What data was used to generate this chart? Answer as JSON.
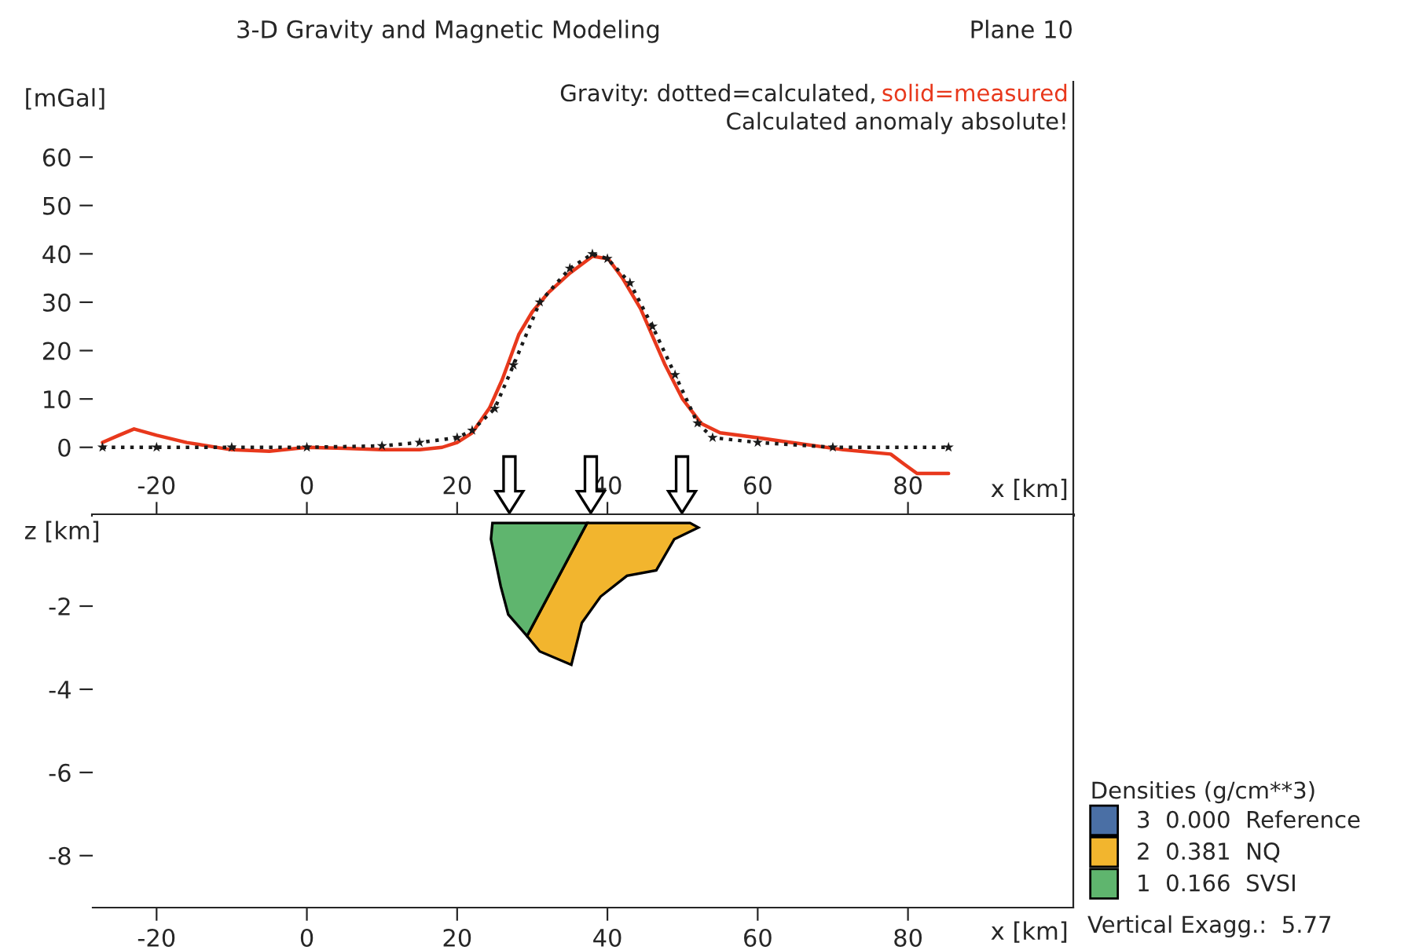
{
  "chart_data": [
    {
      "type": "line",
      "title": "3-D Gravity and Magnetic Modeling",
      "subtitle": "Plane 10",
      "xlabel": "x [km]",
      "ylabel": "[mGal]",
      "annotations": [
        "Gravity: dotted=calculated,",
        "solid=measured",
        "Calculated anomaly absolute!"
      ],
      "series": [
        {
          "color": "#e8381c",
          "line_style": "solid",
          "marker": "none",
          "x": [
            -27.2,
            -25,
            -23,
            -20,
            -16,
            -10,
            -5,
            0,
            5,
            10,
            15,
            18,
            20,
            22,
            24.3,
            26,
            28.2,
            30,
            32.1,
            35,
            38,
            40.1,
            42,
            44.4,
            46,
            47.6,
            50,
            52.5,
            55,
            60,
            64,
            71.4,
            77.7,
            79.5,
            81.2,
            85.4
          ],
          "values": [
            1,
            2.5,
            3.8,
            2.5,
            1,
            -0.5,
            -0.8,
            0,
            -0.2,
            -0.5,
            -0.5,
            0,
            1,
            3,
            8.1,
            14,
            23.3,
            28,
            31.9,
            36,
            39.5,
            39,
            35,
            28.7,
            23,
            17.3,
            10,
            4.9,
            3,
            2,
            1.1,
            -0.5,
            -1.4,
            -3.5,
            -5.4,
            -5.4
          ]
        },
        {
          "color": "#1a1a1a",
          "line_style": "dotted",
          "marker": "star",
          "x": [
            -27.2,
            -20,
            -10,
            0,
            10,
            15,
            20,
            22,
            25,
            27.5,
            31,
            35,
            38,
            40,
            43,
            46,
            49,
            52,
            54,
            60,
            70,
            85.4
          ],
          "values": [
            0,
            0,
            0,
            0,
            0.3,
            1,
            2,
            3.5,
            8,
            17,
            30,
            37,
            40,
            39,
            34,
            25,
            15,
            5,
            2,
            1,
            0,
            0
          ]
        }
      ],
      "xlim": [
        -28.5,
        102
      ],
      "ylim": [
        -14,
        75.6
      ],
      "xticks": [
        -20,
        0,
        20,
        40,
        60,
        80
      ],
      "yticks": [
        0,
        10,
        20,
        30,
        40,
        50,
        60
      ]
    },
    {
      "type": "area",
      "xlabel": "x [km]",
      "ylabel": "z [km]",
      "legend_title": "Densities (g/cm**3)",
      "legend": "bottom right",
      "annotations": [
        "Vertical Exagg.:  5.77"
      ],
      "series": [
        {
          "name": "3  0.000  Reference",
          "color": "#4a6fa5"
        },
        {
          "name": "2  0.381  NQ",
          "color": "#f2b52e",
          "x": [
            37.3,
            51.0,
            52.1,
            48.9,
            46.5,
            42.6,
            39.1,
            36.6,
            35.2,
            31.0,
            29.3
          ],
          "values": [
            0,
            0,
            -0.11,
            -0.39,
            -1.14,
            -1.27,
            -1.77,
            -2.4,
            -3.41,
            -3.09,
            -2.72
          ]
        },
        {
          "name": "1  0.166  SVSI",
          "color": "#5fb56e",
          "x": [
            24.7,
            26.5,
            37.3,
            29.3,
            26.8,
            25.8,
            24.5
          ],
          "values": [
            0,
            0,
            0,
            -2.72,
            -2.2,
            -1.52,
            -0.39
          ]
        }
      ],
      "xlim": [
        -28.5,
        102
      ],
      "ylim": [
        -9.25,
        0.19
      ],
      "xticks": [
        -20,
        0,
        20,
        40,
        60,
        80
      ],
      "yticks": [
        -2,
        -4,
        -6,
        -8
      ]
    }
  ]
}
